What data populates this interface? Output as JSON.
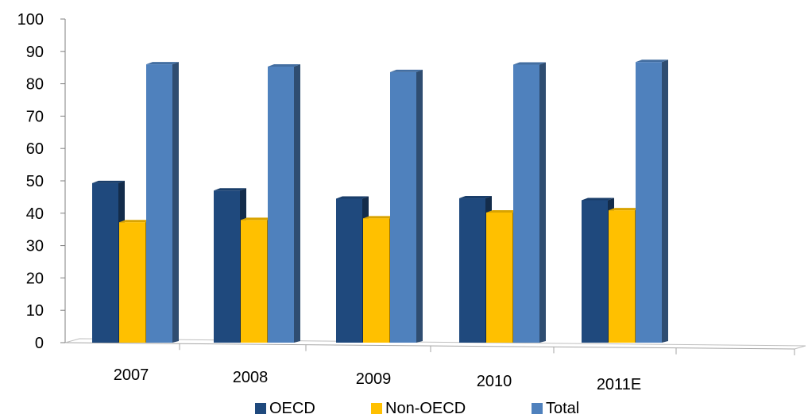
{
  "chart_data": {
    "type": "bar",
    "categories": [
      "2007",
      "2008",
      "2009",
      "2010",
      "2011E"
    ],
    "series": [
      {
        "name": "OECD",
        "values": [
          49.3,
          47.0,
          44.5,
          44.6,
          44.0
        ],
        "color": "#1F497D"
      },
      {
        "name": "Non-OECD",
        "values": [
          37.2,
          37.9,
          38.4,
          40.2,
          40.9
        ],
        "color": "#FFC000"
      },
      {
        "name": "Total",
        "values": [
          86.0,
          85.3,
          83.6,
          85.9,
          86.7
        ],
        "color": "#4F81BD"
      }
    ],
    "y_ticks": [
      "0",
      "10",
      "20",
      "30",
      "40",
      "50",
      "60",
      "70",
      "80",
      "90",
      "100"
    ],
    "ylim": [
      0,
      100
    ],
    "grid": false,
    "legend_position": "bottom",
    "style": "3d-clustered-column"
  }
}
